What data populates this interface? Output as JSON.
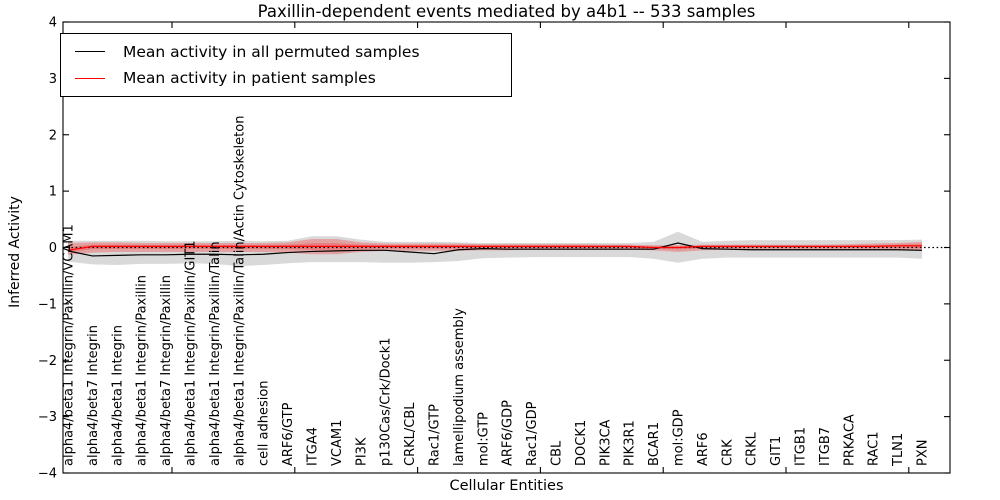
{
  "title": "Paxillin-dependent events mediated by a4b1 -- 533 samples",
  "chart_data": {
    "type": "line",
    "title": "Paxillin-dependent events mediated by a4b1 -- 533 samples",
    "xlabel": "Cellular Entities",
    "ylabel": "Inferred Activity",
    "ylim": [
      -4,
      4
    ],
    "yticks": [
      -4,
      -3,
      -2,
      -1,
      0,
      1,
      2,
      3,
      4
    ],
    "grid": false,
    "legend_position": "upper-left",
    "zero_line": {
      "value": 0,
      "style": "dotted",
      "color": "#000000"
    },
    "categories": [
      "alpha4/beta1 Integrin/Paxillin/VCAM1",
      "alpha4/beta7 Integrin",
      "alpha4/beta1 Integrin",
      "alpha4/beta1 Integrin/Paxillin",
      "alpha4/beta7 Integrin/Paxillin",
      "alpha4/beta1 Integrin/Paxillin/GIT1",
      "alpha4/beta1 Integrin/Paxillin/Talin",
      "alpha4/beta1 Integrin/Paxillin/Talin/Actin Cytoskeleton",
      "cell adhesion",
      "ARF6/GTP",
      "ITGA4",
      "VCAM1",
      "PI3K",
      "p130Cas/Crk/Dock1",
      "CRKL/CBL",
      "Rac1/GTP",
      "lamellipodium assembly",
      "mol:GTP",
      "ARF6/GDP",
      "Rac1/GDP",
      "CBL",
      "DOCK1",
      "PIK3CA",
      "PIK3R1",
      "BCAR1",
      "mol:GDP",
      "ARF6",
      "CRK",
      "CRKL",
      "GIT1",
      "ITGB1",
      "ITGB7",
      "PRKACA",
      "RAC1",
      "TLN1",
      "PXN"
    ],
    "series": [
      {
        "name": "Mean activity in all permuted samples",
        "color": "#000000",
        "band_color": "#666666",
        "band_opacity": 0.25,
        "values": [
          -0.06,
          -0.15,
          -0.14,
          -0.13,
          -0.13,
          -0.12,
          -0.12,
          -0.13,
          -0.12,
          -0.09,
          -0.07,
          -0.06,
          -0.05,
          -0.05,
          -0.08,
          -0.11,
          -0.04,
          -0.02,
          -0.03,
          -0.03,
          -0.03,
          -0.03,
          -0.03,
          -0.03,
          -0.03,
          0.08,
          -0.02,
          -0.03,
          -0.04,
          -0.04,
          -0.04,
          -0.04,
          -0.04,
          -0.04,
          -0.04,
          -0.05
        ],
        "band_upper": [
          0.12,
          0.12,
          0.12,
          0.12,
          0.11,
          0.11,
          0.11,
          0.12,
          0.11,
          0.12,
          0.2,
          0.2,
          0.14,
          0.1,
          0.1,
          0.1,
          0.09,
          0.08,
          0.08,
          0.08,
          0.08,
          0.08,
          0.08,
          0.08,
          0.1,
          0.28,
          0.1,
          0.12,
          0.13,
          0.13,
          0.13,
          0.13,
          0.13,
          0.13,
          0.13,
          0.14
        ],
        "band_lower": [
          -0.25,
          -0.3,
          -0.31,
          -0.29,
          -0.29,
          -0.28,
          -0.29,
          -0.33,
          -0.31,
          -0.28,
          -0.26,
          -0.26,
          -0.26,
          -0.27,
          -0.27,
          -0.26,
          -0.24,
          -0.19,
          -0.18,
          -0.17,
          -0.17,
          -0.17,
          -0.17,
          -0.17,
          -0.2,
          -0.27,
          -0.2,
          -0.18,
          -0.18,
          -0.18,
          -0.18,
          -0.18,
          -0.18,
          -0.18,
          -0.18,
          -0.2
        ]
      },
      {
        "name": "Mean activity in patient samples",
        "color": "#ff0000",
        "band_color": "#ff0000",
        "band_opacity": 0.25,
        "values": [
          -0.05,
          0.02,
          0.02,
          0.02,
          0.02,
          0.02,
          0.02,
          0.02,
          0.02,
          0.02,
          0.02,
          0.02,
          0.02,
          0.02,
          0.02,
          0.02,
          0.02,
          0.02,
          0.02,
          0.02,
          0.02,
          0.02,
          0.02,
          0.02,
          0.0,
          0.0,
          0.02,
          0.02,
          0.02,
          0.02,
          0.02,
          0.02,
          0.02,
          0.02,
          0.03,
          0.03
        ],
        "band_upper": [
          0.08,
          0.09,
          0.09,
          0.08,
          0.08,
          0.08,
          0.08,
          0.08,
          0.08,
          0.09,
          0.15,
          0.15,
          0.09,
          0.07,
          0.07,
          0.07,
          0.07,
          0.06,
          0.06,
          0.06,
          0.06,
          0.06,
          0.05,
          0.05,
          0.04,
          0.04,
          0.05,
          0.05,
          0.05,
          0.05,
          0.05,
          0.05,
          0.06,
          0.07,
          0.08,
          0.1
        ],
        "band_lower": [
          -0.13,
          -0.09,
          -0.08,
          -0.08,
          -0.08,
          -0.08,
          -0.08,
          -0.08,
          -0.08,
          -0.09,
          -0.12,
          -0.12,
          -0.08,
          -0.06,
          -0.06,
          -0.06,
          -0.06,
          -0.05,
          -0.05,
          -0.04,
          -0.04,
          -0.04,
          -0.04,
          -0.04,
          -0.05,
          -0.08,
          -0.05,
          -0.04,
          -0.04,
          -0.04,
          -0.04,
          -0.04,
          -0.04,
          -0.04,
          -0.05,
          -0.06
        ]
      }
    ]
  }
}
